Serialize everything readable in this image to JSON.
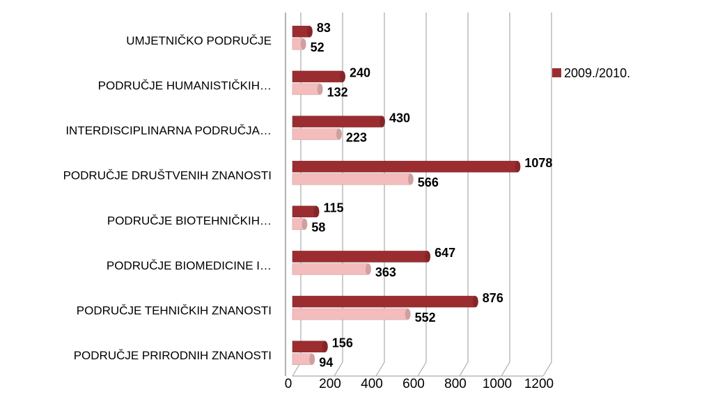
{
  "chart_data": {
    "type": "bar",
    "orientation": "horizontal",
    "categories": [
      "UMJETNIČKO PODRUČJE",
      "PODRUČJE HUMANISTIČKIH…",
      "INTERDISCIPLINARNA PODRUČJA…",
      "PODRUČJE DRUŠTVENIH ZNANOSTI",
      "PODRUČJE BIOTEHNIČKIH…",
      "PODRUČJE BIOMEDICINE I…",
      "PODRUČJE TEHNIČKIH ZNANOSTI",
      "PODRUČJE PRIRODNIH ZNANOSTI"
    ],
    "series": [
      {
        "name": "2009./2010.",
        "color": "#9b2d30",
        "values": [
          83,
          240,
          430,
          1078,
          115,
          647,
          876,
          156
        ]
      },
      {
        "color": "#f4bcbc",
        "values": [
          52,
          132,
          223,
          566,
          58,
          363,
          552,
          94
        ]
      }
    ],
    "xlim": [
      0,
      1200
    ],
    "xticks": [
      0,
      200,
      400,
      600,
      800,
      1000,
      1200
    ],
    "grid": true,
    "legend": "right"
  }
}
